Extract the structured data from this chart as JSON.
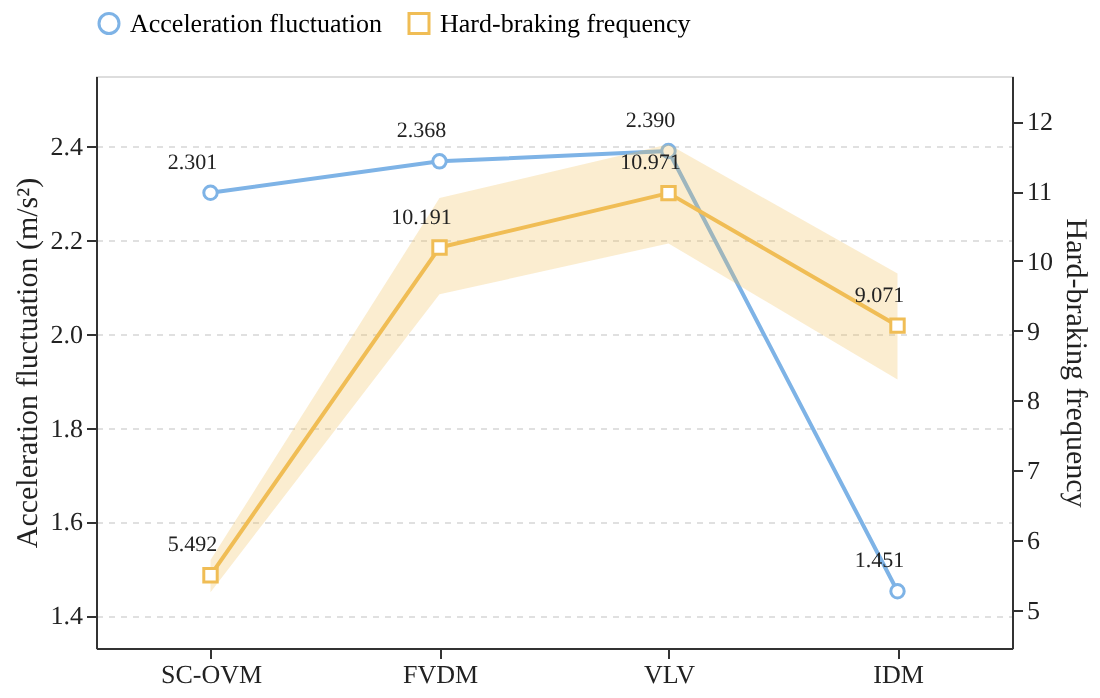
{
  "chart_data": {
    "type": "line",
    "categories": [
      "SC-OVM",
      "FVDM",
      "VLV",
      "IDM"
    ],
    "ylabel": "Acceleration fluctuation (m/s²)",
    "y2label": "Hard-braking frequency",
    "ylim": [
      1.33,
      2.55
    ],
    "yticks": [
      1.4,
      1.6,
      1.8,
      {
        "value": 2.0,
        "label": "2.0"
      },
      2.2,
      2.4
    ],
    "y2lim": [
      4.45,
      12.65
    ],
    "y2ticks": [
      5,
      6,
      7,
      8,
      9,
      10,
      11,
      12
    ],
    "grid": "y",
    "legend": "top",
    "series": [
      {
        "name": "Acceleration fluctuation",
        "color": "#7eb3e6",
        "marker": "circle",
        "values": [
          2.301,
          2.368,
          2.39,
          1.451
        ],
        "value_labels": [
          "2.301",
          "2.368",
          "2.390",
          "1.451"
        ]
      },
      {
        "name": "Hard-braking frequency",
        "color": "#f0bd55",
        "marker": "square",
        "axis": "y2",
        "values": [
          5.492,
          10.191,
          10.971,
          9.071
        ],
        "value_labels": [
          "5.492",
          "10.191",
          "10.971",
          "9.071"
        ],
        "lower": [
          5.25,
          9.52,
          10.25,
          8.3
        ],
        "upper": [
          5.71,
          10.9,
          11.67,
          9.82
        ]
      }
    ]
  }
}
